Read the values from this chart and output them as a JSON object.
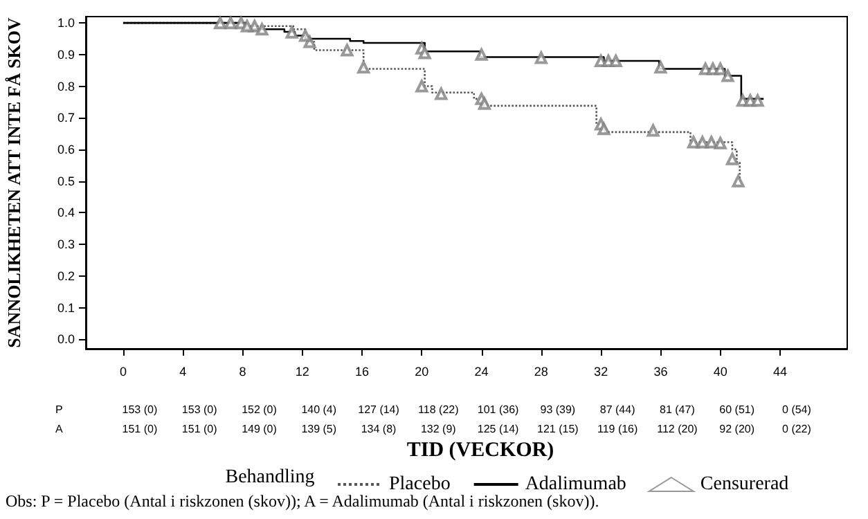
{
  "chart_data": {
    "type": "step",
    "xlabel": "TID (VECKOR)",
    "ylabel": "SANNOLIKHETEN ATT INTE FÅ SKOV",
    "legend_title": "Behandling",
    "xlim": [
      -2.5,
      48.5
    ],
    "xticks": [
      0,
      4,
      8,
      12,
      16,
      20,
      24,
      28,
      32,
      36,
      40,
      44
    ],
    "ylim": [
      -0.03,
      1.02
    ],
    "yticks": [
      {
        "value": 0,
        "label": "0.0"
      },
      {
        "value": 0.1,
        "label": "0.1"
      },
      {
        "value": 0.2,
        "label": "0.2"
      },
      {
        "value": 0.3,
        "label": "0.3"
      },
      {
        "value": 0.4,
        "label": "0.4"
      },
      {
        "value": 0.5,
        "label": "0.5"
      },
      {
        "value": 0.6,
        "label": "0.6"
      },
      {
        "value": 0.7,
        "label": "0.7"
      },
      {
        "value": 0.8,
        "label": "0.8"
      },
      {
        "value": 0.9,
        "label": "0.9"
      },
      {
        "value": 1,
        "label": "1.0"
      }
    ],
    "grid": false,
    "legend": "bottom",
    "series": [
      {
        "name": "Placebo",
        "color": "#555555",
        "line_style": "dotted",
        "marker": "none",
        "x": [
          0,
          8.2,
          11.4,
          12.2,
          12.5,
          12.8,
          16.1,
          20.2,
          20.7,
          23.5,
          24,
          31.7,
          32.2,
          38,
          40.8,
          41.1,
          41.3
        ],
        "values": [
          1,
          0.99,
          0.98,
          0.957,
          0.94,
          0.914,
          0.855,
          0.8,
          0.78,
          0.76,
          0.738,
          0.68,
          0.655,
          0.623,
          0.6,
          0.56,
          0.5
        ]
      },
      {
        "name": "Adalimumab",
        "color": "#000000",
        "line_style": "solid",
        "marker": "none",
        "x": [
          0,
          8.2,
          10.8,
          11.5,
          12.2,
          15.2,
          16.1,
          20.2,
          23.9,
          32.2,
          35.9,
          40.3,
          41.4,
          42.9
        ],
        "values": [
          1,
          0.98,
          0.972,
          0.96,
          0.95,
          0.943,
          0.937,
          0.91,
          0.892,
          0.88,
          0.855,
          0.833,
          0.76,
          0.76
        ]
      },
      {
        "name": "Censurerad",
        "type": "scatter",
        "color": "#808080",
        "marker": "triangle",
        "x": [
          6.5,
          7.2,
          7.9,
          8.8,
          9.3,
          11.3,
          12.5,
          15,
          16.1,
          20,
          21.3,
          24,
          24.2,
          32,
          32.2,
          35.5,
          38.2,
          38.8,
          39.4,
          40,
          40.8,
          41.2,
          8.3,
          12.2,
          20,
          20.2,
          24,
          28,
          32,
          32.5,
          33,
          36,
          39,
          39.5,
          40,
          40.5,
          41.5,
          42,
          42.5
        ],
        "values": [
          1,
          1,
          1,
          0.99,
          0.98,
          0.97,
          0.94,
          0.914,
          0.86,
          0.8,
          0.776,
          0.76,
          0.745,
          0.68,
          0.665,
          0.66,
          0.623,
          0.623,
          0.623,
          0.62,
          0.57,
          0.5,
          0.99,
          0.96,
          0.92,
          0.905,
          0.9,
          0.89,
          0.88,
          0.88,
          0.88,
          0.86,
          0.855,
          0.855,
          0.855,
          0.833,
          0.755,
          0.755,
          0.755
        ]
      }
    ],
    "annotations": [
      "P",
      "153 (0)",
      "153 (0)",
      "152 (0)",
      "140 (4)",
      "127 (14)",
      "118 (22)",
      "101 (36)",
      "93 (39)",
      "87 (44)",
      "81 (47)",
      "60 (51)",
      "0 (54)",
      "A",
      "151 (0)",
      "151 (0)",
      "149 (0)",
      "139 (5)",
      "134 (8)",
      "132 (9)",
      "125 (14)",
      "121 (15)",
      "119 (16)",
      "112 (20)",
      "92 (20)",
      "0 (22)",
      "Obs: P = Placebo (Antal i riskzonen (skov)); A = Adalimumab (Antal i riskzonen (skov))."
    ]
  }
}
